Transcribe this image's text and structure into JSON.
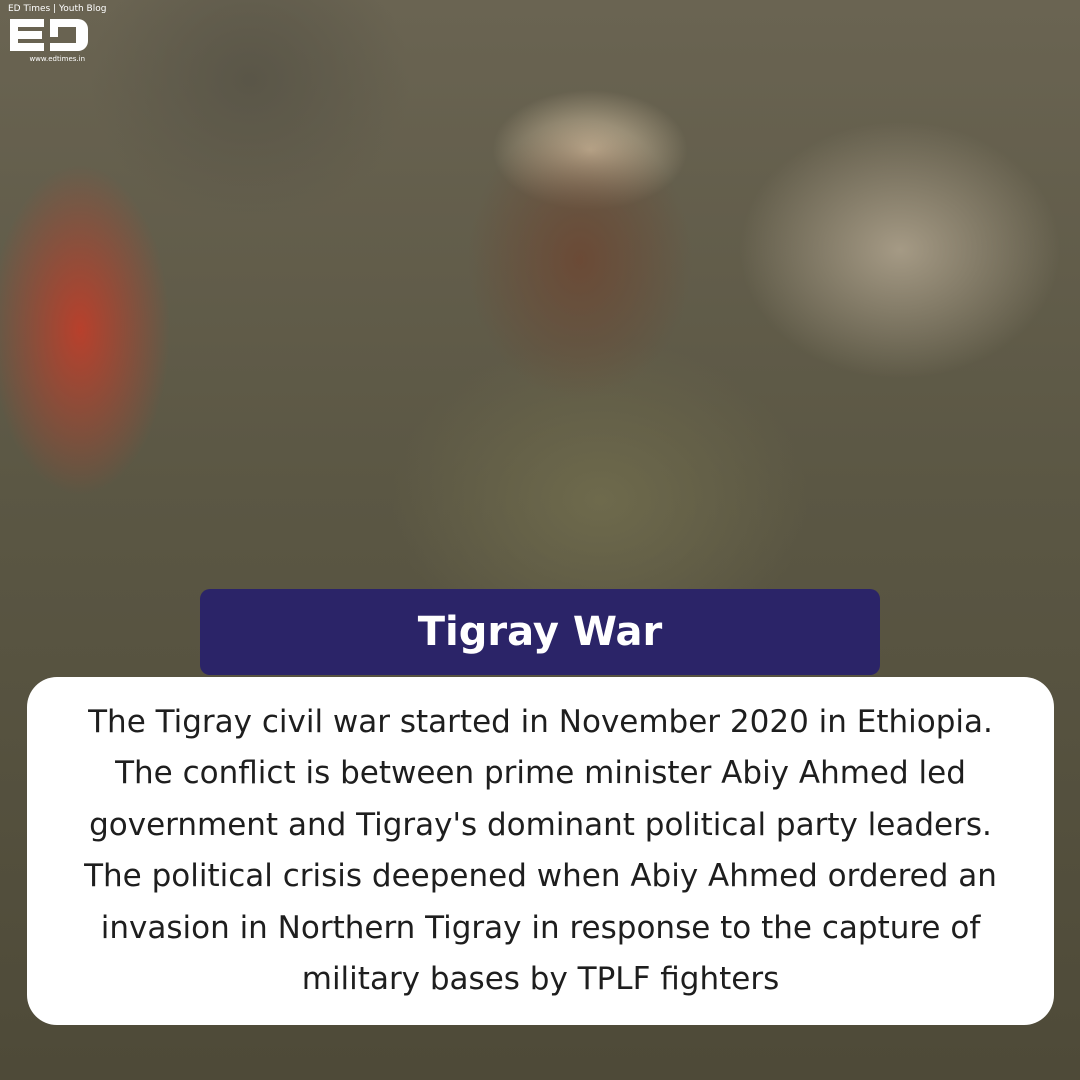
{
  "logo": {
    "tagline": "ED Times | Youth Blog",
    "mark_text": "ED",
    "url": "www.edtimes.in"
  },
  "title": "Tigray War",
  "body": "The Tigray civil war started in November 2020 in Ethiopia. The conflict is between prime minister Abiy Ahmed led government and Tigray's dominant political party leaders. The political crisis deepened when Abiy Ahmed ordered an invasion in Northern Tigray in response to the capture of military bases by TPLF fighters",
  "colors": {
    "title_bg": "#2b2468",
    "card_bg": "#ffffff",
    "text": "#1e1e1e"
  }
}
